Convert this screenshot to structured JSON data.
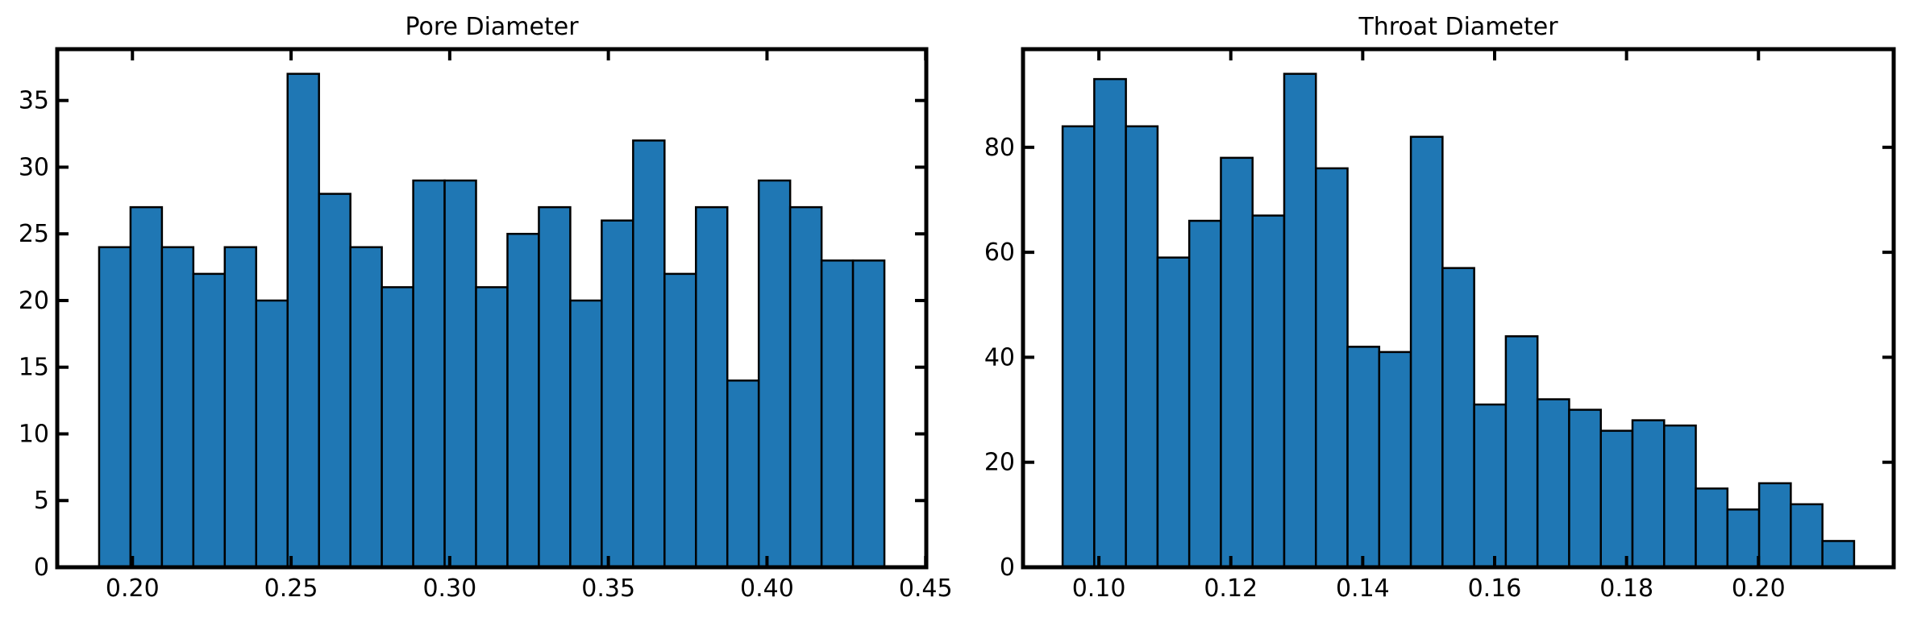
{
  "chart_data": [
    {
      "type": "bar",
      "title": "Pore Diameter",
      "xlabel": "",
      "ylabel": "",
      "bar_color": "#1f77b4",
      "edge_color": "#000000",
      "bin_edges": [
        0.1895,
        0.1994,
        0.2093,
        0.2192,
        0.2291,
        0.239,
        0.2489,
        0.2588,
        0.2687,
        0.2786,
        0.2885,
        0.2984,
        0.3083,
        0.3182,
        0.3281,
        0.338,
        0.3479,
        0.3578,
        0.3677,
        0.3776,
        0.3875,
        0.3974,
        0.4073,
        0.4172,
        0.4271,
        0.437
      ],
      "values": [
        24,
        27,
        24,
        22,
        24,
        20,
        37,
        28,
        24,
        21,
        29,
        29,
        21,
        25,
        27,
        20,
        26,
        32,
        22,
        27,
        14,
        29,
        27,
        23,
        23
      ],
      "xlim": [
        0.1763,
        0.4502
      ],
      "ylim": [
        0,
        38.85
      ],
      "xticks": [
        0.2,
        0.25,
        0.3,
        0.35,
        0.4,
        0.45
      ],
      "xtick_labels": [
        "0.20",
        "0.25",
        "0.30",
        "0.35",
        "0.40",
        "0.45"
      ],
      "yticks": [
        0,
        5,
        10,
        15,
        20,
        25,
        30,
        35
      ],
      "ytick_labels": [
        "0",
        "5",
        "10",
        "15",
        "20",
        "25",
        "30",
        "35"
      ]
    },
    {
      "type": "bar",
      "title": "Throat Diameter",
      "xlabel": "",
      "ylabel": "",
      "bar_color": "#1f77b4",
      "edge_color": "#000000",
      "bin_edges": [
        0.0945,
        0.0993,
        0.1041,
        0.1089,
        0.1137,
        0.1185,
        0.1233,
        0.1281,
        0.1329,
        0.1377,
        0.1425,
        0.1473,
        0.1521,
        0.1569,
        0.1617,
        0.1665,
        0.1713,
        0.1761,
        0.1809,
        0.1857,
        0.1905,
        0.1953,
        0.2001,
        0.2049,
        0.2097,
        0.2145
      ],
      "values": [
        84,
        93,
        84,
        59,
        66,
        78,
        67,
        94,
        76,
        42,
        41,
        82,
        57,
        31,
        44,
        32,
        30,
        26,
        28,
        27,
        15,
        11,
        16,
        12,
        5
      ],
      "xlim": [
        0.0885,
        0.2205
      ],
      "ylim": [
        0,
        98.7
      ],
      "xticks": [
        0.1,
        0.12,
        0.14,
        0.16,
        0.18,
        0.2
      ],
      "xtick_labels": [
        "0.10",
        "0.12",
        "0.14",
        "0.16",
        "0.18",
        "0.20"
      ],
      "yticks": [
        0,
        20,
        40,
        60,
        80
      ],
      "ytick_labels": [
        "0",
        "20",
        "40",
        "60",
        "80"
      ]
    }
  ]
}
